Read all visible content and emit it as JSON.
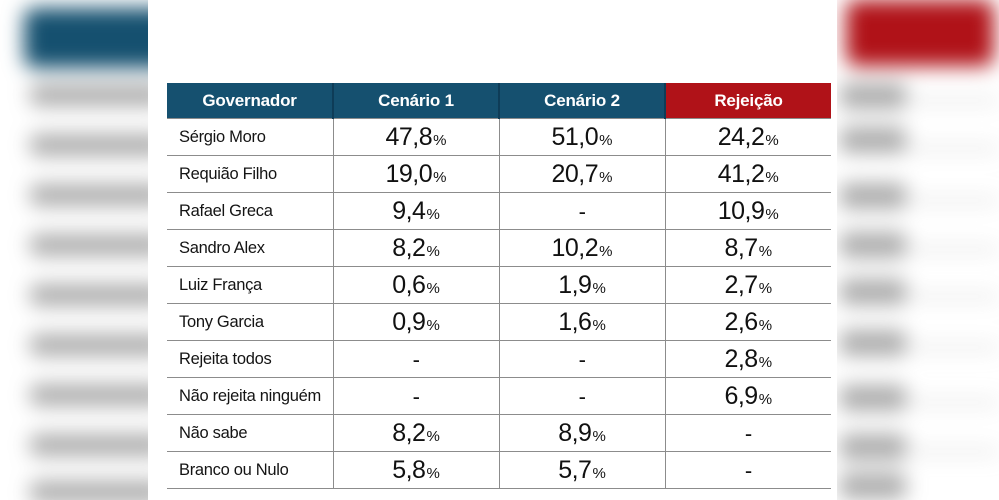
{
  "chart_data": {
    "type": "table",
    "title": "",
    "columns": [
      "Governador",
      "Cenário 1",
      "Cenário 2",
      "Rejeição"
    ],
    "rows": [
      {
        "label": "Sérgio Moro",
        "values": [
          "47,8%",
          "51,0%",
          "24,2%"
        ]
      },
      {
        "label": "Requião Filho",
        "values": [
          "19,0%",
          "20,7%",
          "41,2%"
        ]
      },
      {
        "label": "Rafael Greca",
        "values": [
          "9,4%",
          "-",
          "10,9%"
        ]
      },
      {
        "label": "Sandro Alex",
        "values": [
          "8,2%",
          "10,2%",
          "8,7%"
        ]
      },
      {
        "label": "Luiz França",
        "values": [
          "0,6%",
          "1,9%",
          "2,7%"
        ]
      },
      {
        "label": "Tony Garcia",
        "values": [
          "0,9%",
          "1,6%",
          "2,6%"
        ]
      },
      {
        "label": "Rejeita todos",
        "values": [
          "-",
          "-",
          "2,8%"
        ]
      },
      {
        "label": "Não rejeita ninguém",
        "values": [
          "-",
          "-",
          "6,9%"
        ]
      },
      {
        "label": "Não sabe",
        "values": [
          "8,2%",
          "8,9%",
          "-"
        ]
      },
      {
        "label": "Branco ou Nulo",
        "values": [
          "5,8%",
          "5,7%",
          "-"
        ]
      }
    ],
    "colors": {
      "header_blue": "#15506F",
      "header_red": "#B01218",
      "header_divider": "#0E3C57",
      "grid_line": "#8C8C8C",
      "text": "#141414"
    },
    "layout_hints": {
      "legend_position": "none",
      "grid": "on",
      "value_columns_centered": true,
      "background": "blurred enlarged copy of same table"
    }
  }
}
